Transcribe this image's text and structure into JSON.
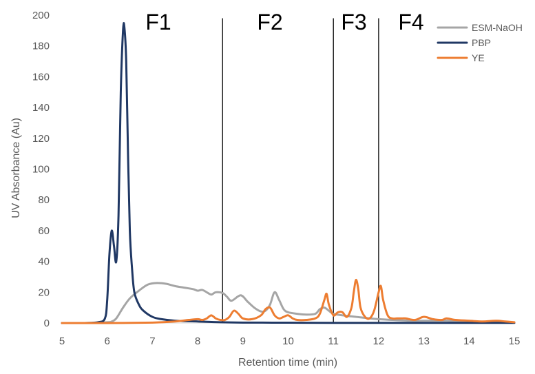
{
  "chart_data": {
    "type": "line",
    "xlabel": "Retention  time (min)",
    "ylabel": "UV Absorbance (Au)",
    "xlim": [
      5,
      15
    ],
    "ylim": [
      0,
      200
    ],
    "x_ticks": [
      "5",
      "6",
      "7",
      "8",
      "9",
      "10",
      "11",
      "12",
      "13",
      "14",
      "15"
    ],
    "y_ticks": [
      "0",
      "20",
      "40",
      "60",
      "80",
      "100",
      "120",
      "140",
      "160",
      "180",
      "200"
    ],
    "grid": false,
    "legend_position": "top-right",
    "fractions": [
      {
        "label": "F1",
        "x_start": 5.0,
        "x_end": 8.55
      },
      {
        "label": "F2",
        "x_start": 8.55,
        "x_end": 11.0
      },
      {
        "label": "F3",
        "x_start": 11.0,
        "x_end": 12.0
      },
      {
        "label": "F4",
        "x_start": 12.0,
        "x_end": 15.0
      }
    ],
    "dividers": [
      8.55,
      11.0,
      12.0
    ],
    "series": [
      {
        "name": "ESM-NaOH",
        "color": "#a5a5a5",
        "x": [
          5.0,
          5.5,
          6.0,
          6.1,
          6.2,
          6.35,
          6.5,
          6.7,
          6.9,
          7.1,
          7.3,
          7.5,
          7.7,
          7.9,
          8.0,
          8.1,
          8.2,
          8.3,
          8.4,
          8.55,
          8.65,
          8.75,
          8.95,
          9.1,
          9.25,
          9.4,
          9.5,
          9.6,
          9.7,
          9.8,
          9.9,
          10.0,
          10.2,
          10.4,
          10.6,
          10.7,
          10.8,
          10.9,
          11.0,
          11.2,
          11.5,
          11.8,
          12.0,
          12.3,
          12.7,
          13.0,
          13.3,
          13.5,
          13.7,
          14.0,
          14.5,
          15.0
        ],
        "values": [
          0,
          0,
          0.5,
          1,
          3,
          10,
          16,
          21,
          25,
          26,
          25.5,
          24,
          23,
          22,
          21,
          21.5,
          20,
          18.5,
          20,
          19.5,
          17,
          14.5,
          18,
          14,
          10,
          7.5,
          8,
          12,
          20,
          15,
          9,
          7,
          6,
          5.5,
          6,
          9,
          10,
          8,
          6,
          5,
          4,
          3,
          2.5,
          2,
          1.5,
          1.5,
          1.5,
          1.5,
          1,
          1,
          0.5,
          0.3
        ]
      },
      {
        "name": "PBP",
        "color": "#203864",
        "x": [
          5.0,
          5.5,
          5.8,
          5.95,
          6.0,
          6.05,
          6.1,
          6.15,
          6.2,
          6.25,
          6.3,
          6.35,
          6.38,
          6.42,
          6.46,
          6.5,
          6.55,
          6.6,
          6.7,
          6.8,
          7.0,
          7.2,
          7.5,
          8.0,
          8.5,
          9.0,
          10.0,
          11.0,
          12.0,
          13.0,
          14.0,
          15.0
        ],
        "values": [
          0,
          0,
          0.5,
          3,
          15,
          45,
          60,
          50,
          40,
          70,
          150,
          190,
          192,
          170,
          110,
          60,
          35,
          20,
          12,
          8,
          4,
          2.5,
          1.5,
          1,
          0.5,
          0.3,
          0.2,
          0.1,
          0.1,
          0.1,
          0.1,
          0.1
        ]
      },
      {
        "name": "YE",
        "color": "#ed7d31",
        "x": [
          5.0,
          6.0,
          7.0,
          7.5,
          7.8,
          8.0,
          8.1,
          8.2,
          8.3,
          8.4,
          8.5,
          8.6,
          8.7,
          8.8,
          8.9,
          9.0,
          9.2,
          9.4,
          9.5,
          9.6,
          9.7,
          9.8,
          9.9,
          10.0,
          10.1,
          10.2,
          10.4,
          10.6,
          10.7,
          10.8,
          10.85,
          10.9,
          11.0,
          11.1,
          11.2,
          11.3,
          11.4,
          11.45,
          11.5,
          11.55,
          11.6,
          11.7,
          11.8,
          11.9,
          12.0,
          12.05,
          12.1,
          12.2,
          12.3,
          12.4,
          12.5,
          12.6,
          12.8,
          13.0,
          13.2,
          13.4,
          13.5,
          13.7,
          14.0,
          14.3,
          14.6,
          14.8,
          15.0
        ],
        "values": [
          0,
          0,
          0.3,
          1,
          2,
          2.5,
          2,
          3,
          5,
          3,
          2,
          2,
          4,
          8,
          6,
          3,
          2.5,
          5,
          9,
          10,
          5,
          3,
          4,
          5,
          3,
          2,
          2,
          3,
          6,
          15,
          19,
          12,
          5,
          7,
          7,
          4,
          10,
          20,
          28,
          22,
          10,
          4,
          3,
          8,
          20,
          24,
          15,
          5,
          3,
          3,
          3,
          3,
          2,
          4,
          2.5,
          2,
          3,
          2,
          1.5,
          1,
          1.5,
          1,
          0.5
        ]
      }
    ]
  }
}
